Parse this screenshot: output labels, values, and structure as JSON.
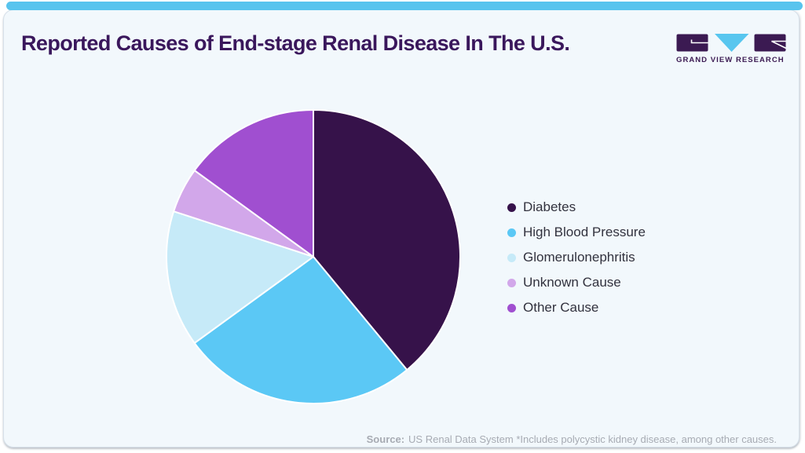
{
  "card": {
    "title": "Reported Causes of End-stage Renal Disease In The U.S.",
    "accent_color": "#58C4EE",
    "background_color": "#F2F8FC",
    "title_color": "#3A175C"
  },
  "logo": {
    "text": "GRAND VIEW RESEARCH",
    "dark_color": "#3B1A52",
    "cyan_color": "#58C6EF"
  },
  "chart_data": {
    "type": "pie",
    "title": "Reported Causes of End-stage Renal Disease In The U.S.",
    "start_angle_deg": 0,
    "direction": "clockwise",
    "legend_position": "right",
    "slices": [
      {
        "label": "Diabetes",
        "value_pct": 39,
        "color": "#36124A"
      },
      {
        "label": "High Blood Pressure",
        "value_pct": 26,
        "color": "#5BC8F5"
      },
      {
        "label": "Glomerulonephritis",
        "value_pct": 15,
        "color": "#C6EAF8"
      },
      {
        "label": "Unknown Cause",
        "value_pct": 5,
        "color": "#D2A7EA"
      },
      {
        "label": "Other Cause",
        "value_pct": 15,
        "color": "#A04FD0"
      }
    ]
  },
  "source": {
    "label": "Source:",
    "text": "US Renal Data System *Includes polycystic kidney disease, among other causes."
  }
}
